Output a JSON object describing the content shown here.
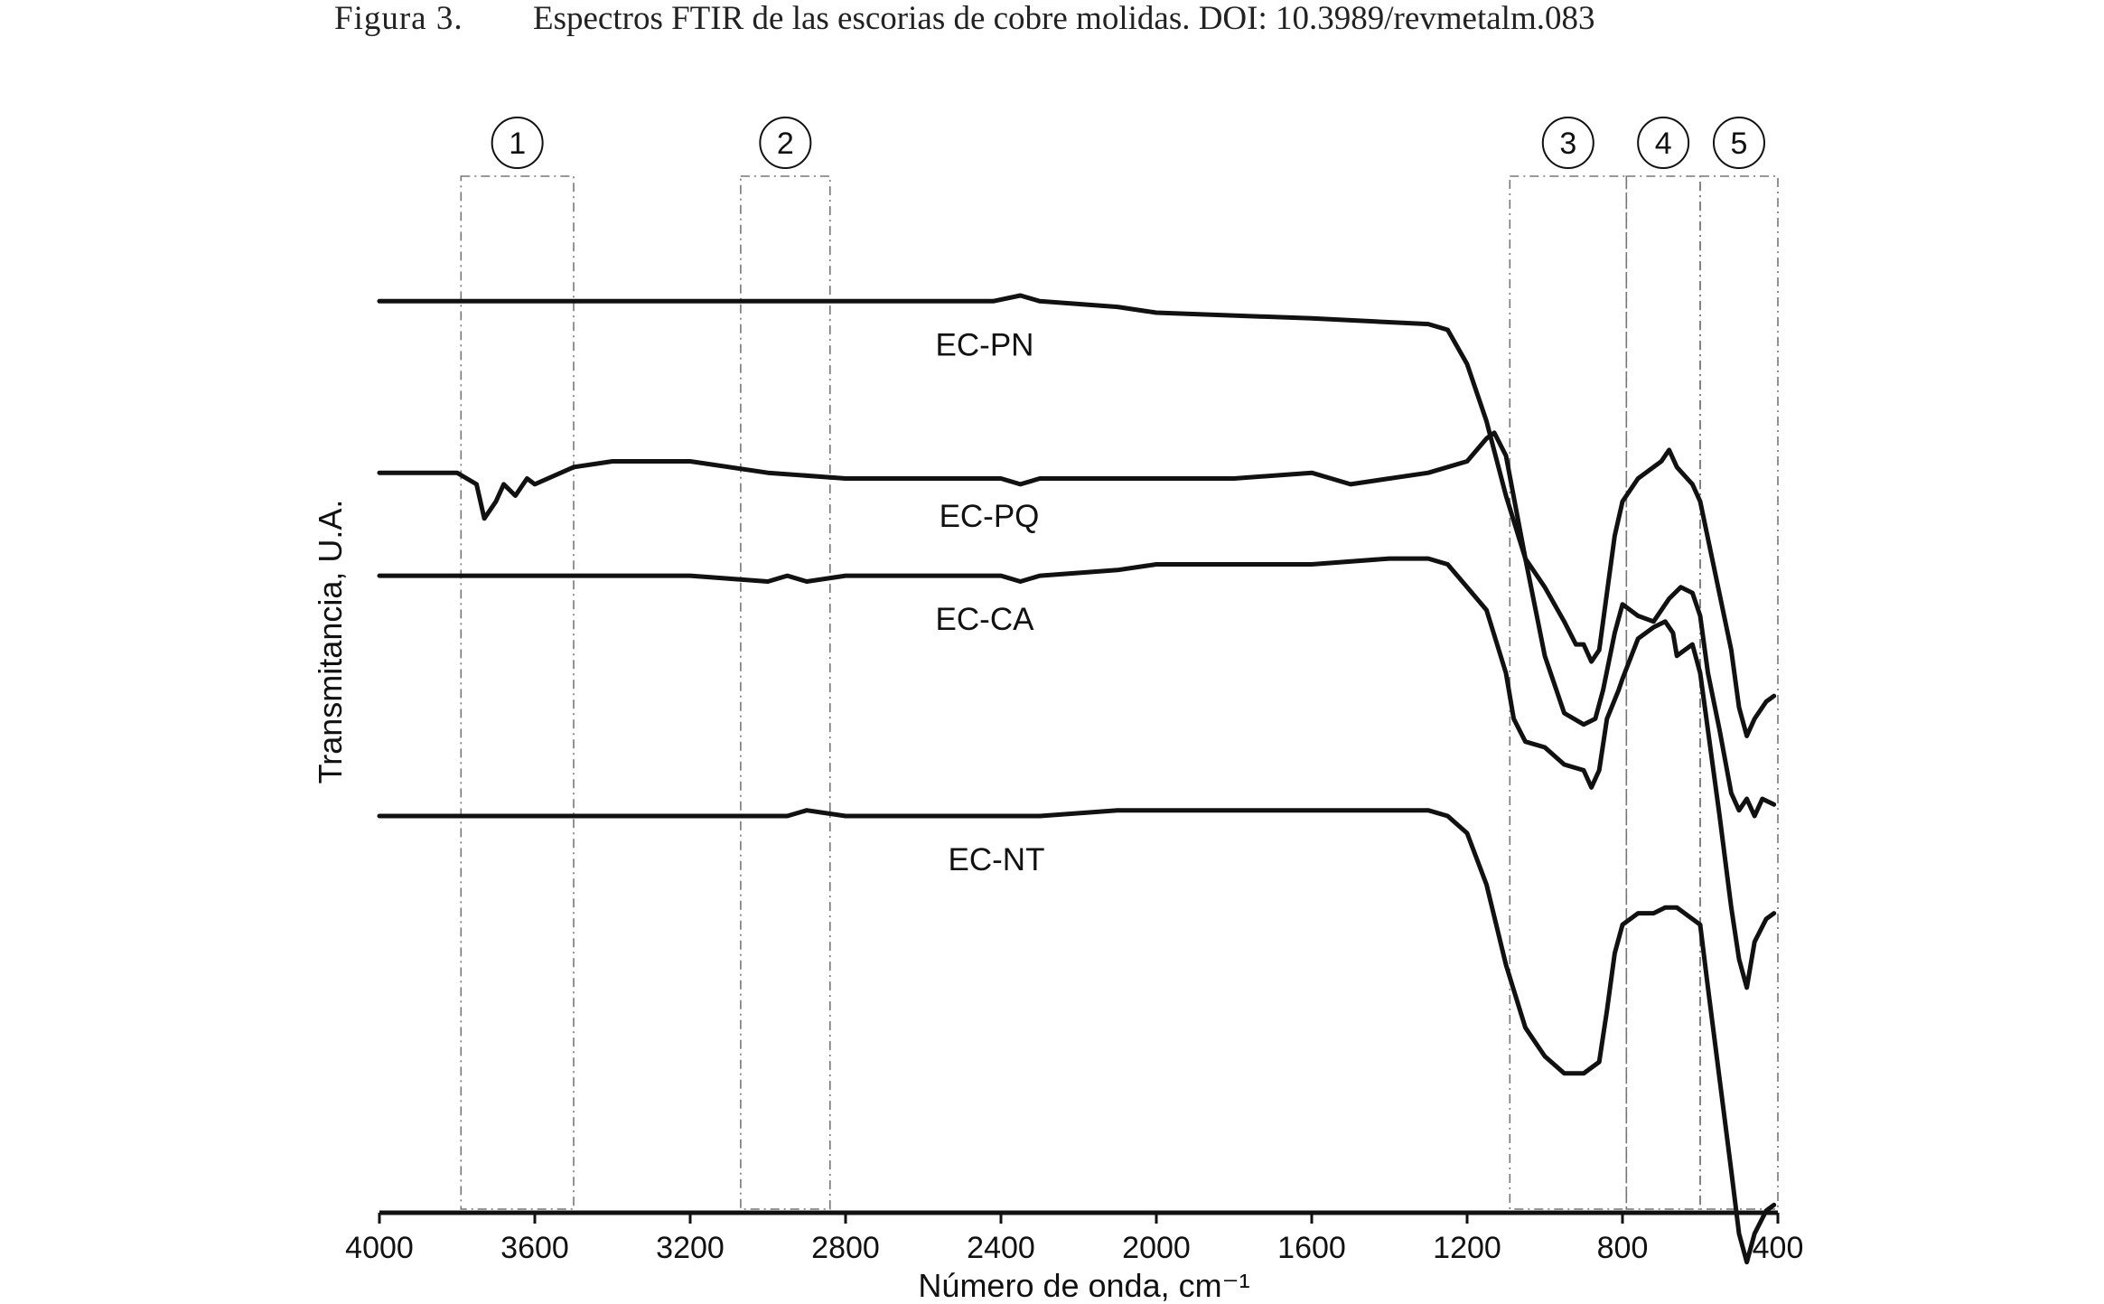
{
  "caption": {
    "prefix": "Figura 3.",
    "text": "Espectros FTIR de las escorias de cobre molidas. DOI: 10.3989/revmetalm.083"
  },
  "chart_data": {
    "type": "line",
    "title": "",
    "xlabel": "Número de onda, cm⁻¹",
    "ylabel": "Transmitancia, U.A.",
    "xlim": [
      4000,
      400
    ],
    "x_reversed": true,
    "y_units": "arbitrary",
    "grid": false,
    "legend": "none",
    "x_ticks": [
      4000,
      3600,
      3200,
      2800,
      2400,
      2000,
      1600,
      1200,
      800,
      400
    ],
    "x_tick_labels": [
      "4000",
      "3600",
      "3200",
      "2800",
      "2400",
      "2000",
      "1600",
      "1200",
      "800",
      "400"
    ],
    "regions": [
      {
        "label": "1",
        "from": 3790,
        "to": 3500
      },
      {
        "label": "2",
        "from": 3070,
        "to": 2840
      },
      {
        "label": "3",
        "from": 1090,
        "to": 790
      },
      {
        "label": "4",
        "from": 790,
        "to": 600
      },
      {
        "label": "5",
        "from": 600,
        "to": 400
      }
    ],
    "series": [
      {
        "name": "EC-PN",
        "points": [
          [
            4000,
            90
          ],
          [
            3600,
            90
          ],
          [
            3200,
            90
          ],
          [
            2800,
            90
          ],
          [
            2420,
            90
          ],
          [
            2350,
            91
          ],
          [
            2300,
            90
          ],
          [
            2100,
            89
          ],
          [
            2000,
            88
          ],
          [
            1600,
            87
          ],
          [
            1300,
            86
          ],
          [
            1250,
            85
          ],
          [
            1200,
            79
          ],
          [
            1150,
            69
          ],
          [
            1100,
            56
          ],
          [
            1050,
            45
          ],
          [
            1000,
            40
          ],
          [
            950,
            34
          ],
          [
            920,
            30
          ],
          [
            900,
            30
          ],
          [
            880,
            27
          ],
          [
            860,
            29
          ],
          [
            840,
            39
          ],
          [
            820,
            49
          ],
          [
            800,
            55
          ],
          [
            760,
            59
          ],
          [
            700,
            62
          ],
          [
            680,
            64
          ],
          [
            660,
            61
          ],
          [
            620,
            58
          ],
          [
            600,
            55
          ],
          [
            560,
            42
          ],
          [
            520,
            29
          ],
          [
            500,
            19
          ],
          [
            480,
            14
          ],
          [
            460,
            17
          ],
          [
            430,
            20
          ],
          [
            410,
            21
          ]
        ]
      },
      {
        "name": "EC-PQ",
        "points": [
          [
            4000,
            60
          ],
          [
            3800,
            60
          ],
          [
            3750,
            58
          ],
          [
            3730,
            52
          ],
          [
            3700,
            55
          ],
          [
            3680,
            58
          ],
          [
            3650,
            56
          ],
          [
            3620,
            59
          ],
          [
            3600,
            58
          ],
          [
            3500,
            61
          ],
          [
            3400,
            62
          ],
          [
            3200,
            62
          ],
          [
            3000,
            60
          ],
          [
            2800,
            59
          ],
          [
            2400,
            59
          ],
          [
            2350,
            58
          ],
          [
            2300,
            59
          ],
          [
            2000,
            59
          ],
          [
            1800,
            59
          ],
          [
            1600,
            60
          ],
          [
            1550,
            59
          ],
          [
            1500,
            58
          ],
          [
            1400,
            59
          ],
          [
            1300,
            60
          ],
          [
            1200,
            62
          ],
          [
            1150,
            66
          ],
          [
            1130,
            67
          ],
          [
            1100,
            63
          ],
          [
            1050,
            45
          ],
          [
            1000,
            28
          ],
          [
            950,
            18
          ],
          [
            900,
            16
          ],
          [
            870,
            17
          ],
          [
            850,
            22
          ],
          [
            820,
            32
          ],
          [
            800,
            37
          ],
          [
            760,
            35
          ],
          [
            720,
            34
          ],
          [
            680,
            38
          ],
          [
            650,
            40
          ],
          [
            620,
            39
          ],
          [
            600,
            35
          ],
          [
            580,
            25
          ],
          [
            550,
            15
          ],
          [
            520,
            4
          ],
          [
            500,
            1
          ],
          [
            480,
            3
          ],
          [
            460,
            0
          ],
          [
            440,
            3
          ],
          [
            410,
            2
          ]
        ]
      },
      {
        "name": "EC-CA",
        "points": [
          [
            4000,
            42
          ],
          [
            3600,
            42
          ],
          [
            3200,
            42
          ],
          [
            3000,
            41
          ],
          [
            2950,
            42
          ],
          [
            2900,
            41
          ],
          [
            2800,
            42
          ],
          [
            2400,
            42
          ],
          [
            2350,
            41
          ],
          [
            2300,
            42
          ],
          [
            2100,
            43
          ],
          [
            2000,
            44
          ],
          [
            1600,
            44
          ],
          [
            1400,
            45
          ],
          [
            1300,
            45
          ],
          [
            1250,
            44
          ],
          [
            1200,
            40
          ],
          [
            1150,
            36
          ],
          [
            1100,
            25
          ],
          [
            1080,
            17
          ],
          [
            1050,
            13
          ],
          [
            1000,
            12
          ],
          [
            950,
            9
          ],
          [
            900,
            8
          ],
          [
            880,
            5
          ],
          [
            860,
            8
          ],
          [
            840,
            17
          ],
          [
            810,
            22
          ],
          [
            800,
            24
          ],
          [
            760,
            31
          ],
          [
            720,
            33
          ],
          [
            690,
            34
          ],
          [
            670,
            32
          ],
          [
            660,
            28
          ],
          [
            640,
            29
          ],
          [
            620,
            30
          ],
          [
            600,
            25
          ],
          [
            580,
            15
          ],
          [
            550,
            0
          ],
          [
            520,
            -16
          ],
          [
            500,
            -25
          ],
          [
            480,
            -30
          ],
          [
            460,
            -22
          ],
          [
            430,
            -18
          ],
          [
            410,
            -17
          ]
        ]
      },
      {
        "name": "EC-NT",
        "points": [
          [
            4000,
            0
          ],
          [
            3600,
            0
          ],
          [
            3200,
            0
          ],
          [
            3000,
            0
          ],
          [
            2950,
            0
          ],
          [
            2900,
            1
          ],
          [
            2800,
            0
          ],
          [
            2400,
            0
          ],
          [
            2350,
            0
          ],
          [
            2300,
            0
          ],
          [
            2100,
            1
          ],
          [
            2000,
            1
          ],
          [
            1600,
            1
          ],
          [
            1400,
            1
          ],
          [
            1300,
            1
          ],
          [
            1250,
            0
          ],
          [
            1200,
            -3
          ],
          [
            1150,
            -12
          ],
          [
            1100,
            -26
          ],
          [
            1050,
            -37
          ],
          [
            1000,
            -42
          ],
          [
            950,
            -45
          ],
          [
            900,
            -45
          ],
          [
            860,
            -43
          ],
          [
            840,
            -34
          ],
          [
            820,
            -24
          ],
          [
            800,
            -19
          ],
          [
            760,
            -17
          ],
          [
            720,
            -17
          ],
          [
            690,
            -16
          ],
          [
            660,
            -16
          ],
          [
            640,
            -17
          ],
          [
            600,
            -19
          ],
          [
            580,
            -30
          ],
          [
            550,
            -46
          ],
          [
            520,
            -62
          ],
          [
            500,
            -73
          ],
          [
            480,
            -78
          ],
          [
            460,
            -73
          ],
          [
            430,
            -69
          ],
          [
            410,
            -68
          ]
        ]
      }
    ]
  }
}
